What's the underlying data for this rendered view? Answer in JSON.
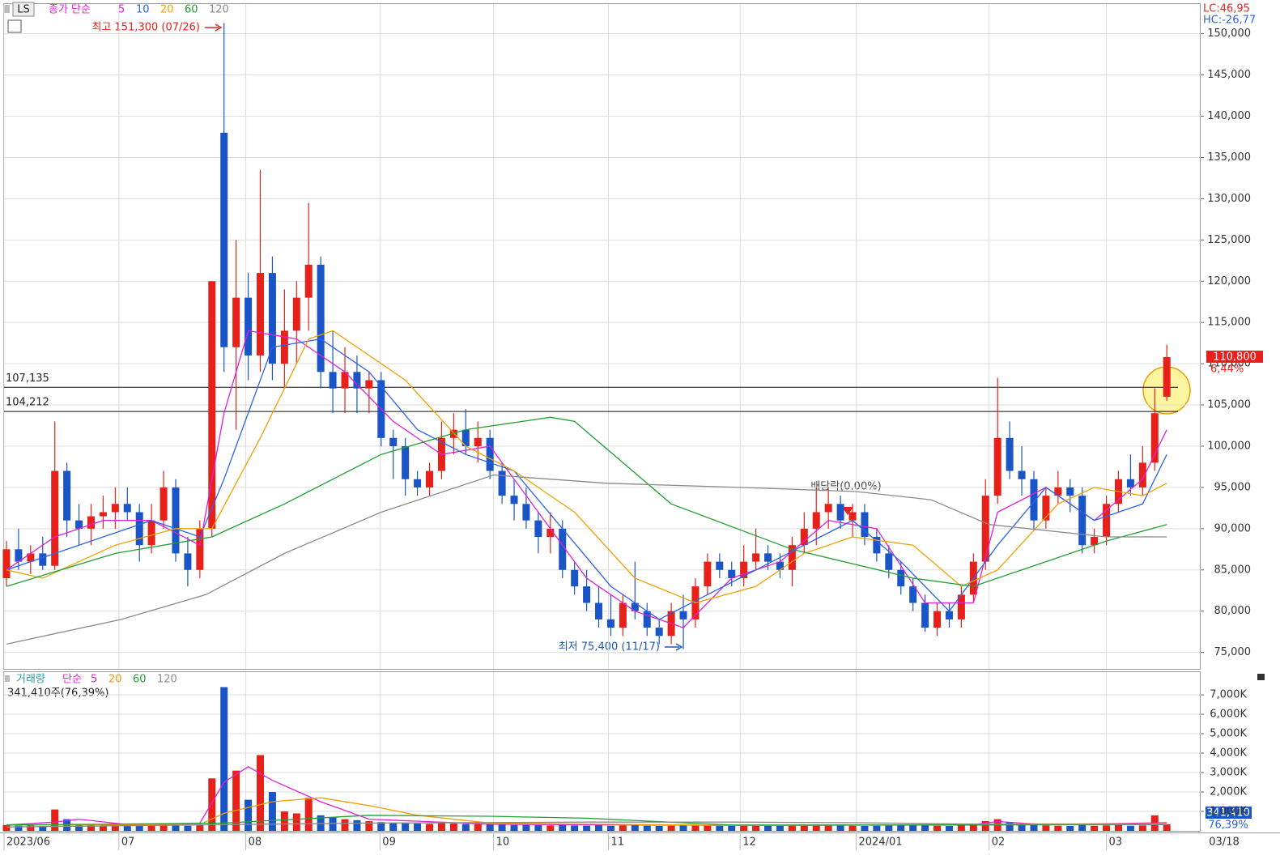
{
  "chart_data": [
    {
      "type": "candlestick",
      "title": "LS",
      "legend_label": "종가 단순",
      "high_note": "최고 151,300 (07/26)",
      "low_note": "최저 75,400 (11/17)",
      "dividend_note": "배당락(0.00%)",
      "lc": "LC:46,95",
      "hc": "HC:-26,77",
      "last_price_label": "110,800",
      "change_label": "6,44%",
      "last_date": "03/18",
      "up_color": "#e8201a",
      "down_color": "#1a55c8",
      "xlim": [
        -0.2,
        98.8
      ],
      "ylim": [
        73000,
        153600
      ],
      "xticks": [
        {
          "value": -0.2,
          "label": "2023/06"
        },
        {
          "value": 9.3,
          "label": "07"
        },
        {
          "value": 19.8,
          "label": "08"
        },
        {
          "value": 30.9,
          "label": "09"
        },
        {
          "value": 40.3,
          "label": "10"
        },
        {
          "value": 49.8,
          "label": "11"
        },
        {
          "value": 60.7,
          "label": "12"
        },
        {
          "value": 70.3,
          "label": "2024/01"
        },
        {
          "value": 81.3,
          "label": "02"
        },
        {
          "value": 91,
          "label": "03"
        }
      ],
      "yticks": [
        {
          "value": 75000,
          "label": "75,000"
        },
        {
          "value": 80000,
          "label": "80,000"
        },
        {
          "value": 85000,
          "label": "85,000"
        },
        {
          "value": 90000,
          "label": "90,000"
        },
        {
          "value": 95000,
          "label": "95,000"
        },
        {
          "value": 100000,
          "label": "100,000"
        },
        {
          "value": 105000,
          "label": "105,000"
        },
        {
          "value": 110000,
          "label": "110,000"
        },
        {
          "value": 115000,
          "label": "115,000"
        },
        {
          "value": 120000,
          "label": "120,000"
        },
        {
          "value": 125000,
          "label": "125,000"
        },
        {
          "value": 130000,
          "label": "130,000"
        },
        {
          "value": 135000,
          "label": "135,000"
        },
        {
          "value": 140000,
          "label": "140,000"
        },
        {
          "value": 145000,
          "label": "145,000"
        },
        {
          "value": 150000,
          "label": "150,000"
        }
      ],
      "hlines": [
        {
          "value": 107135,
          "label": "107,135"
        },
        {
          "value": 104212,
          "label": "104,212"
        }
      ],
      "ohlc": [
        [
          84000,
          88500,
          83000,
          87500
        ],
        [
          87500,
          90000,
          85000,
          86000
        ],
        [
          86000,
          88000,
          84500,
          87000
        ],
        [
          87000,
          89000,
          85000,
          85500
        ],
        [
          85500,
          103000,
          85000,
          97000
        ],
        [
          97000,
          98000,
          89000,
          91000
        ],
        [
          91000,
          93000,
          88000,
          90000
        ],
        [
          90000,
          93000,
          88000,
          91500
        ],
        [
          91500,
          94000,
          90000,
          92000
        ],
        [
          92000,
          95000,
          90000,
          93000
        ],
        [
          93000,
          95000,
          91000,
          92000
        ],
        [
          92000,
          93000,
          86000,
          88000
        ],
        [
          88000,
          93000,
          87000,
          91000
        ],
        [
          91000,
          97000,
          90000,
          95000
        ],
        [
          95000,
          96000,
          86000,
          87000
        ],
        [
          87000,
          89000,
          83000,
          85000
        ],
        [
          85000,
          91000,
          84000,
          90000
        ],
        [
          90000,
          120000,
          89000,
          120000
        ],
        [
          138000,
          151300,
          109000,
          112000
        ],
        [
          112000,
          125000,
          102000,
          118000
        ],
        [
          118000,
          121000,
          108000,
          111000
        ],
        [
          111000,
          133500,
          109000,
          121000
        ],
        [
          121000,
          123000,
          108000,
          110000
        ],
        [
          110000,
          119000,
          107000,
          114000
        ],
        [
          114000,
          120000,
          110000,
          118000
        ],
        [
          118000,
          129500,
          114000,
          122000
        ],
        [
          122000,
          123000,
          107000,
          109000
        ],
        [
          109000,
          114000,
          104000,
          107000
        ],
        [
          107000,
          112000,
          104000,
          109000
        ],
        [
          109000,
          111000,
          104000,
          107000
        ],
        [
          107000,
          109000,
          104000,
          108000
        ],
        [
          108000,
          109000,
          100000,
          101000
        ],
        [
          101000,
          102000,
          96000,
          100000
        ],
        [
          100000,
          101000,
          94000,
          96000
        ],
        [
          96000,
          97000,
          94000,
          95000
        ],
        [
          95000,
          98000,
          94000,
          97000
        ],
        [
          97000,
          103000,
          96000,
          101000
        ],
        [
          101000,
          104000,
          99000,
          102000
        ],
        [
          102000,
          104500,
          99000,
          100000
        ],
        [
          100000,
          103000,
          98000,
          101000
        ],
        [
          101000,
          102000,
          96000,
          97000
        ],
        [
          97000,
          98000,
          93000,
          94000
        ],
        [
          94000,
          96000,
          91000,
          93000
        ],
        [
          93000,
          95000,
          90000,
          91000
        ],
        [
          91000,
          92000,
          87000,
          89000
        ],
        [
          89000,
          92000,
          87000,
          90000
        ],
        [
          90000,
          91000,
          84000,
          85000
        ],
        [
          85000,
          86000,
          82000,
          83000
        ],
        [
          83000,
          85000,
          80000,
          81000
        ],
        [
          81000,
          83000,
          78000,
          79000
        ],
        [
          79000,
          82000,
          77000,
          78000
        ],
        [
          78000,
          82000,
          77000,
          81000
        ],
        [
          81000,
          86000,
          79000,
          80000
        ],
        [
          80000,
          81000,
          77000,
          78000
        ],
        [
          78000,
          79000,
          76000,
          77000
        ],
        [
          77000,
          81000,
          76000,
          80000
        ],
        [
          80000,
          82000,
          75400,
          79000
        ],
        [
          79000,
          84000,
          78000,
          83000
        ],
        [
          83000,
          87000,
          82000,
          86000
        ],
        [
          86000,
          87000,
          84000,
          85000
        ],
        [
          85000,
          86000,
          83000,
          84000
        ],
        [
          84000,
          88000,
          83000,
          86000
        ],
        [
          86000,
          90000,
          85000,
          87000
        ],
        [
          87000,
          88000,
          85000,
          86000
        ],
        [
          86000,
          87000,
          84000,
          85000
        ],
        [
          85000,
          89000,
          83000,
          88000
        ],
        [
          88000,
          92000,
          87000,
          90000
        ],
        [
          90000,
          95000,
          88000,
          92000
        ],
        [
          92000,
          95000,
          90000,
          93000
        ],
        [
          93000,
          94000,
          90000,
          91000
        ],
        [
          91000,
          93000,
          89000,
          92000
        ],
        [
          92000,
          93000,
          88000,
          89000
        ],
        [
          89000,
          90000,
          86000,
          87000
        ],
        [
          87000,
          88000,
          84000,
          85000
        ],
        [
          85000,
          86000,
          82000,
          83000
        ],
        [
          83000,
          84000,
          80000,
          81000
        ],
        [
          81000,
          82000,
          77500,
          78000
        ],
        [
          78000,
          81000,
          77000,
          80000
        ],
        [
          80000,
          81000,
          78000,
          79000
        ],
        [
          79000,
          83000,
          78000,
          82000
        ],
        [
          82000,
          87000,
          81000,
          86000
        ],
        [
          86000,
          96000,
          85000,
          94000
        ],
        [
          94000,
          108300,
          93000,
          101000
        ],
        [
          101000,
          103000,
          96000,
          97000
        ],
        [
          97000,
          100000,
          94000,
          96000
        ],
        [
          96000,
          97000,
          90000,
          91000
        ],
        [
          91000,
          95000,
          90000,
          94000
        ],
        [
          94000,
          97000,
          93000,
          95000
        ],
        [
          95000,
          96000,
          92000,
          94000
        ],
        [
          94000,
          95000,
          87000,
          88000
        ],
        [
          88000,
          90000,
          87000,
          89000
        ],
        [
          89000,
          94000,
          88000,
          93000
        ],
        [
          93000,
          97000,
          92000,
          96000
        ],
        [
          96000,
          99000,
          94000,
          95000
        ],
        [
          95000,
          100000,
          94000,
          98000
        ],
        [
          98000,
          107000,
          97000,
          104000
        ],
        [
          106000,
          112300,
          105500,
          110800
        ]
      ],
      "series": [
        {
          "name": "5",
          "color": "#e020d8",
          "x": [
            0,
            4,
            8,
            12,
            16,
            18,
            20,
            24,
            28,
            32,
            36,
            40,
            44,
            48,
            52,
            56,
            60,
            64,
            68,
            72,
            76,
            80,
            82,
            86,
            90,
            94,
            96
          ],
          "values": [
            85000,
            89000,
            91000,
            91000,
            88000,
            104000,
            114000,
            113000,
            109000,
            103000,
            99000,
            100000,
            92000,
            84000,
            80000,
            78000,
            84000,
            86000,
            91000,
            90000,
            81000,
            81000,
            92000,
            95000,
            91000,
            96000,
            102000
          ]
        },
        {
          "name": "10",
          "color": "#2a62f0",
          "x": [
            0,
            6,
            12,
            16,
            18,
            22,
            26,
            30,
            34,
            38,
            42,
            46,
            50,
            54,
            58,
            62,
            66,
            70,
            74,
            78,
            82,
            86,
            90,
            94,
            96
          ],
          "values": [
            85000,
            88000,
            91000,
            89000,
            96000,
            112000,
            113000,
            109000,
            102000,
            99000,
            97000,
            90000,
            83000,
            79000,
            82000,
            85000,
            88000,
            91000,
            86000,
            80000,
            88000,
            95000,
            91000,
            93000,
            99000
          ]
        },
        {
          "name": "20",
          "color": "#f0a000",
          "x": [
            0,
            3,
            9,
            14,
            17,
            21,
            25,
            27,
            33,
            38,
            42,
            47,
            52,
            57,
            62,
            66,
            70,
            75,
            79,
            82,
            87,
            90,
            94,
            96
          ],
          "values": [
            85000,
            84000,
            88000,
            90000,
            90000,
            101000,
            113000,
            114000,
            108000,
            100000,
            97000,
            92000,
            84000,
            81000,
            83000,
            87000,
            89000,
            88000,
            83000,
            85000,
            93000,
            95000,
            94000,
            95500
          ]
        },
        {
          "name": "60",
          "color": "#20a030",
          "x": [
            0,
            9,
            17,
            23,
            31,
            38,
            45,
            47,
            55,
            65,
            75,
            80,
            86,
            91,
            96
          ],
          "values": [
            83000,
            87000,
            89000,
            93000,
            99000,
            102000,
            103500,
            103000,
            93000,
            87500,
            84000,
            83000,
            86000,
            88500,
            90500
          ]
        },
        {
          "name": "120",
          "color": "#8a8a8a",
          "x": [
            0,
            9.5,
            16.5,
            23,
            31,
            40.3,
            49.7,
            60.7,
            70.3,
            76.5,
            81.3,
            91,
            96
          ],
          "values": [
            76000,
            79000,
            82000,
            87000,
            92000,
            96500,
            95500,
            95000,
            94500,
            93500,
            90500,
            89000,
            89000
          ]
        }
      ]
    },
    {
      "type": "bar",
      "title": "거래량",
      "legend_label": "단순",
      "current_label": "341,410주(76,39%)",
      "last_value_label": "341,410",
      "last_ratio_label": "76,39%",
      "ylim": [
        0,
        8170
      ],
      "yticks": [
        {
          "value": 1000,
          "label": "1,000K"
        },
        {
          "value": 2000,
          "label": "2,000K"
        },
        {
          "value": 3000,
          "label": "3,000K"
        },
        {
          "value": 4000,
          "label": "4,000K"
        },
        {
          "value": 5000,
          "label": "5,000K"
        },
        {
          "value": 6000,
          "label": "6,000K"
        },
        {
          "value": 7000,
          "label": "7,000K"
        }
      ],
      "values": [
        300,
        260,
        280,
        250,
        1100,
        600,
        350,
        300,
        280,
        300,
        270,
        320,
        260,
        330,
        280,
        260,
        300,
        2700,
        7400,
        3100,
        1600,
        3900,
        2000,
        1000,
        900,
        1700,
        800,
        700,
        600,
        550,
        500,
        450,
        420,
        400,
        380,
        360,
        400,
        380,
        350,
        340,
        330,
        320,
        300,
        300,
        290,
        280,
        300,
        280,
        270,
        290,
        260,
        280,
        300,
        260,
        250,
        260,
        300,
        320,
        300,
        280,
        270,
        280,
        300,
        260,
        250,
        270,
        300,
        320,
        290,
        280,
        260,
        250,
        260,
        270,
        280,
        290,
        300,
        260,
        250,
        280,
        320,
        500,
        600,
        450,
        350,
        300,
        280,
        260,
        250,
        300,
        260,
        280,
        300,
        260,
        280,
        800,
        341.41
      ],
      "series": [
        {
          "name": "5",
          "color": "#e020d8",
          "x": [
            0,
            4,
            6,
            10,
            16,
            18,
            20,
            22,
            26,
            30,
            40,
            60,
            80,
            82,
            86,
            96
          ],
          "values": [
            300,
            450,
            600,
            320,
            400,
            2500,
            3300,
            2600,
            1500,
            600,
            340,
            280,
            320,
            480,
            320,
            420
          ]
        },
        {
          "name": "20",
          "color": "#f0a000",
          "x": [
            0,
            16,
            18,
            22,
            26,
            30,
            34,
            40,
            60,
            80,
            84,
            96
          ],
          "values": [
            300,
            330,
            900,
            1500,
            1700,
            1300,
            800,
            400,
            280,
            300,
            360,
            360
          ]
        },
        {
          "name": "60",
          "color": "#20a030",
          "x": [
            0,
            18,
            30,
            40,
            48,
            60,
            80,
            96
          ],
          "values": [
            300,
            400,
            800,
            750,
            650,
            300,
            300,
            320
          ]
        },
        {
          "name": "120",
          "color": "#8a8a8a",
          "x": [
            0,
            30,
            48,
            60,
            70,
            80,
            96
          ],
          "values": [
            200,
            400,
            450,
            450,
            420,
            350,
            330
          ]
        }
      ]
    }
  ]
}
